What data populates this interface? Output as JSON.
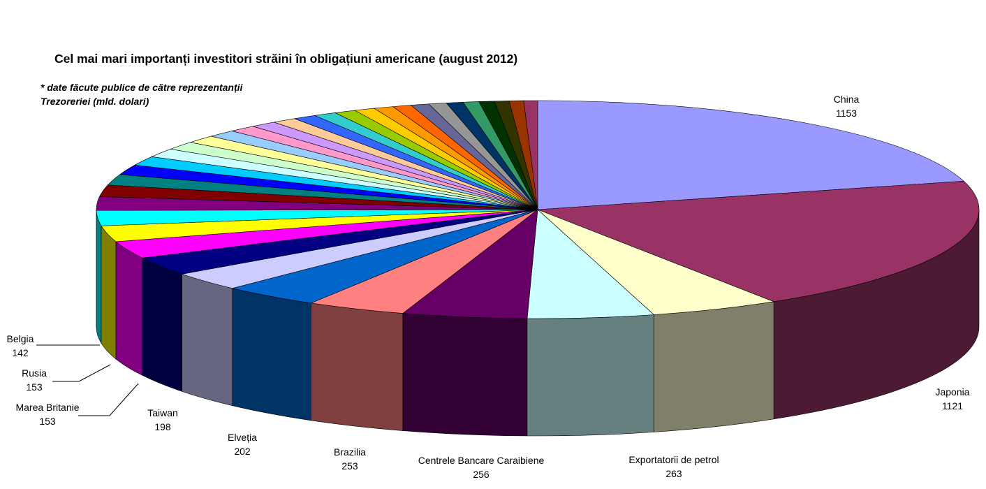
{
  "title": "Cel mai mari importanți investitori străini în obligațiuni americane (august 2012)",
  "subtitle": "* date făcute publice de către reprezentanții Trezoreriei  (mld. dolari)",
  "chart_data": {
    "type": "pie",
    "title": "Cel mai mari importanți investitori străini în obligațiuni americane (august 2012)",
    "subtitle": "* date făcute publice de către reprezentanții Trezoreriei  (mld. dolari)",
    "three_d": true,
    "start_angle_deg": -90,
    "direction": "clockwise",
    "labeled_slices": [
      {
        "label": "China",
        "value": 1153,
        "color": "#9999ff",
        "side_color": "#5c5c99"
      },
      {
        "label": "Japonia",
        "value": 1121,
        "color": "#993366",
        "side_color": "#4d1a33"
      },
      {
        "label": "Exportatorii de petrol",
        "value": 263,
        "color": "#ffffcc",
        "side_color": "#80806a"
      },
      {
        "label": "Centrele Bancare Caraibiene",
        "value": 256,
        "color": "#ccffff",
        "side_color": "#668080"
      },
      {
        "label": "Brazilia",
        "value": 253,
        "color": "#660066",
        "side_color": "#330033"
      },
      {
        "label": "Elveția",
        "value": 202,
        "color": "#ff8080",
        "side_color": "#804040"
      },
      {
        "label": "Taiwan",
        "value": 198,
        "color": "#0066cc",
        "side_color": "#003366"
      },
      {
        "label": "Marea Britanie",
        "value": 153,
        "color": "#ccccff",
        "side_color": "#666680"
      },
      {
        "label": "Rusia",
        "value": 153,
        "color": "#000080",
        "side_color": "#000040"
      },
      {
        "label": "Belgia",
        "value": 142,
        "color": "#ff00ff",
        "side_color": "#800080"
      }
    ],
    "unlabeled_slice_values": [
      132,
      125,
      112,
      96,
      88,
      82,
      76,
      72,
      68,
      64,
      60,
      56,
      54,
      50,
      48,
      46,
      44,
      42,
      40,
      38,
      37,
      36,
      34,
      32,
      31,
      30,
      29,
      28
    ],
    "unlabeled_slice_colors": [
      "#ffff00",
      "#00ffff",
      "#800080",
      "#800000",
      "#008080",
      "#0000ff",
      "#00ccff",
      "#ccffff",
      "#ccffcc",
      "#ffff99",
      "#99ccff",
      "#ff99cc",
      "#cc99ff",
      "#ffcc99",
      "#3366ff",
      "#33cccc",
      "#99cc00",
      "#ffcc00",
      "#ff9900",
      "#ff6600",
      "#666699",
      "#969696",
      "#003366",
      "#339966",
      "#003300",
      "#333300",
      "#993300",
      "#993366"
    ]
  }
}
